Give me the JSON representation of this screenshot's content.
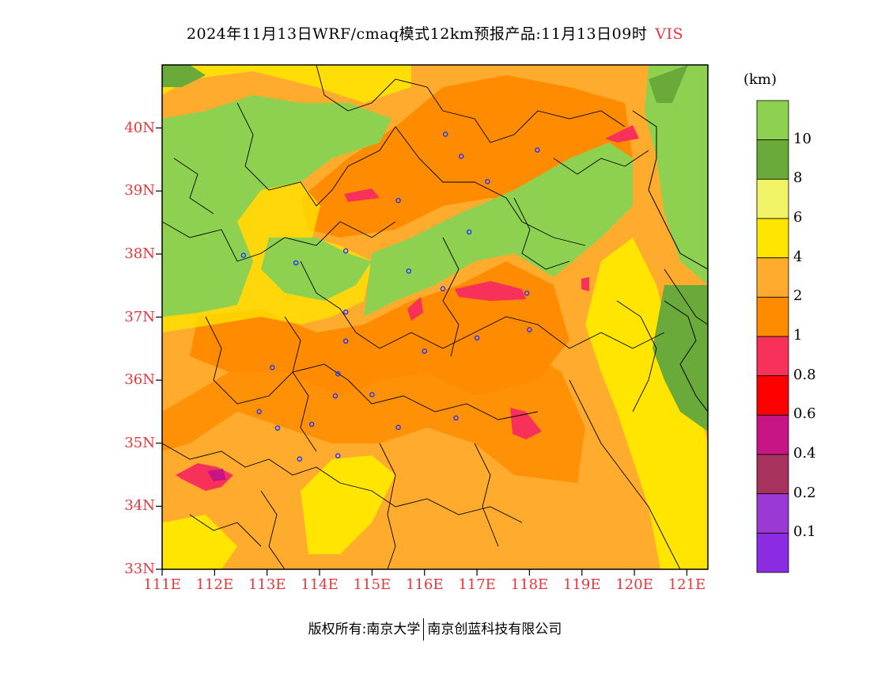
{
  "title": {
    "main": "2024年11月13日WRF/cmaq模式12km预报产品:11月13日09时",
    "variable": "VIS"
  },
  "axes": {
    "lat_labels": [
      "40N",
      "39N",
      "38N",
      "37N",
      "36N",
      "35N",
      "34N",
      "33N"
    ],
    "lon_labels": [
      "111E",
      "112E",
      "113E",
      "114E",
      "115E",
      "116E",
      "117E",
      "118E",
      "119E",
      "120E",
      "121E"
    ]
  },
  "legend": {
    "unit": "(km)",
    "labels": [
      "10",
      "8",
      "6",
      "4",
      "2",
      "1",
      "0.8",
      "0.6",
      "0.4",
      "0.2",
      "0.1"
    ],
    "colors": [
      "#8ed150",
      "#6aaa3a",
      "#f2f467",
      "#ffe500",
      "#ffab2e",
      "#ff8c00",
      "#f7315a",
      "#ff0000",
      "#c71585",
      "#a8325e",
      "#9b39d4",
      "#8b2be2"
    ]
  },
  "footer": {
    "left": "版权所有:南京大学",
    "right": "南京创蓝科技有限公司"
  },
  "chart_data": {
    "type": "heatmap",
    "title": "2024年11月13日WRF/cmaq模式12km预报产品:11月13日09时 VIS",
    "lat_range": [
      33,
      41
    ],
    "lon_range": [
      111,
      121.4
    ],
    "unit": "km",
    "levels": [
      0.1,
      0.2,
      0.4,
      0.6,
      0.8,
      1,
      2,
      4,
      6,
      8,
      10
    ],
    "stations": [
      [
        116.4,
        39.9
      ],
      [
        116.7,
        39.55
      ],
      [
        118.15,
        39.65
      ],
      [
        117.2,
        39.15
      ],
      [
        115.5,
        38.85
      ],
      [
        116.85,
        38.35
      ],
      [
        114.5,
        38.05
      ],
      [
        112.55,
        37.98
      ],
      [
        113.55,
        37.86
      ],
      [
        115.7,
        37.73
      ],
      [
        116.35,
        37.45
      ],
      [
        117.95,
        37.38
      ],
      [
        114.5,
        37.08
      ],
      [
        114.5,
        36.62
      ],
      [
        117.0,
        36.67
      ],
      [
        118.0,
        36.8
      ],
      [
        116.0,
        36.46
      ],
      [
        113.1,
        36.2
      ],
      [
        114.35,
        36.1
      ],
      [
        114.3,
        35.75
      ],
      [
        115.0,
        35.77
      ],
      [
        112.85,
        35.5
      ],
      [
        113.2,
        35.24
      ],
      [
        113.85,
        35.3
      ],
      [
        115.5,
        35.25
      ],
      [
        116.6,
        35.4
      ],
      [
        114.35,
        34.8
      ],
      [
        113.62,
        34.75
      ]
    ]
  }
}
